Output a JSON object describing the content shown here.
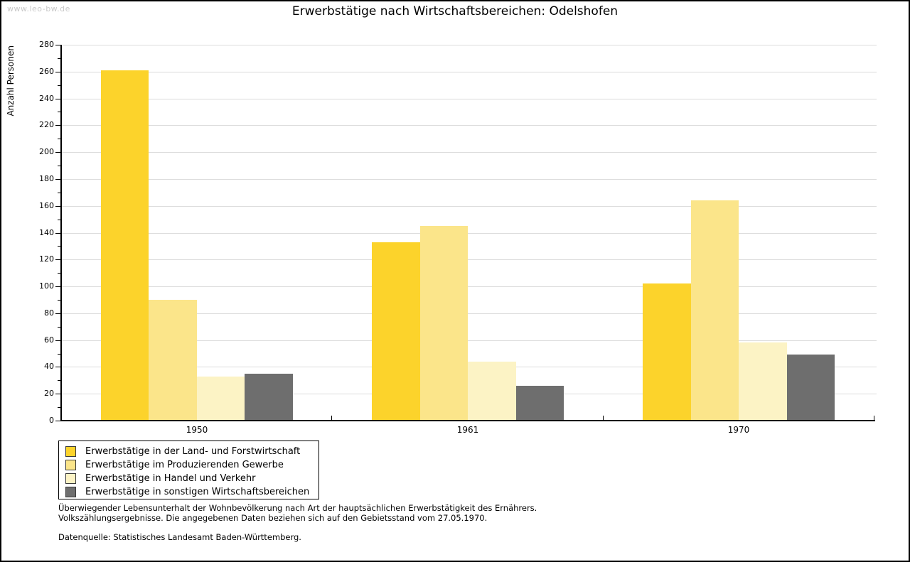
{
  "watermark": "www.leo-bw.de",
  "title": "Erwerbstätige nach Wirtschaftsbereichen: Odelshofen",
  "chart_data": {
    "type": "bar",
    "title": "Erwerbstätige nach Wirtschaftsbereichen: Odelshofen",
    "xlabel": "",
    "ylabel": "Anzahl Personen",
    "ylim": [
      0,
      280
    ],
    "ytick_step": 20,
    "minor_tick_step": 10,
    "yticks": [
      0,
      20,
      40,
      60,
      80,
      100,
      120,
      140,
      160,
      180,
      200,
      220,
      240,
      260,
      280
    ],
    "grid": true,
    "legend_position": "bottom-left",
    "categories": [
      "1950",
      "1961",
      "1970"
    ],
    "series": [
      {
        "name": "Erwerbstätige in der Land- und Forstwirtschaft",
        "color": "#FCD32B",
        "values": [
          261,
          133,
          102
        ]
      },
      {
        "name": "Erwerbstätige im Produzierenden Gewerbe",
        "color": "#FBE58A",
        "values": [
          90,
          145,
          164
        ]
      },
      {
        "name": "Erwerbstätige in Handel und Verkehr",
        "color": "#FCF3C5",
        "values": [
          33,
          44,
          58
        ]
      },
      {
        "name": "Erwerbstätige in sonstigen Wirtschaftsbereichen",
        "color": "#6E6E6E",
        "values": [
          35,
          26,
          49
        ]
      }
    ]
  },
  "colors": {
    "grid": "#DCDCDC",
    "axis": "#000000",
    "watermark": "#C9C9C9"
  },
  "footnotes": {
    "line1": "Überwiegender Lebensunterhalt der Wohnbevölkerung nach Art der hauptsächlichen Erwerbstätigkeit des Ernährers.",
    "line2": "Volkszählungsergebnisse. Die angegebenen Daten beziehen sich auf den Gebietsstand vom 27.05.1970.",
    "source": "Datenquelle: Statistisches Landesamt Baden-Württemberg."
  }
}
